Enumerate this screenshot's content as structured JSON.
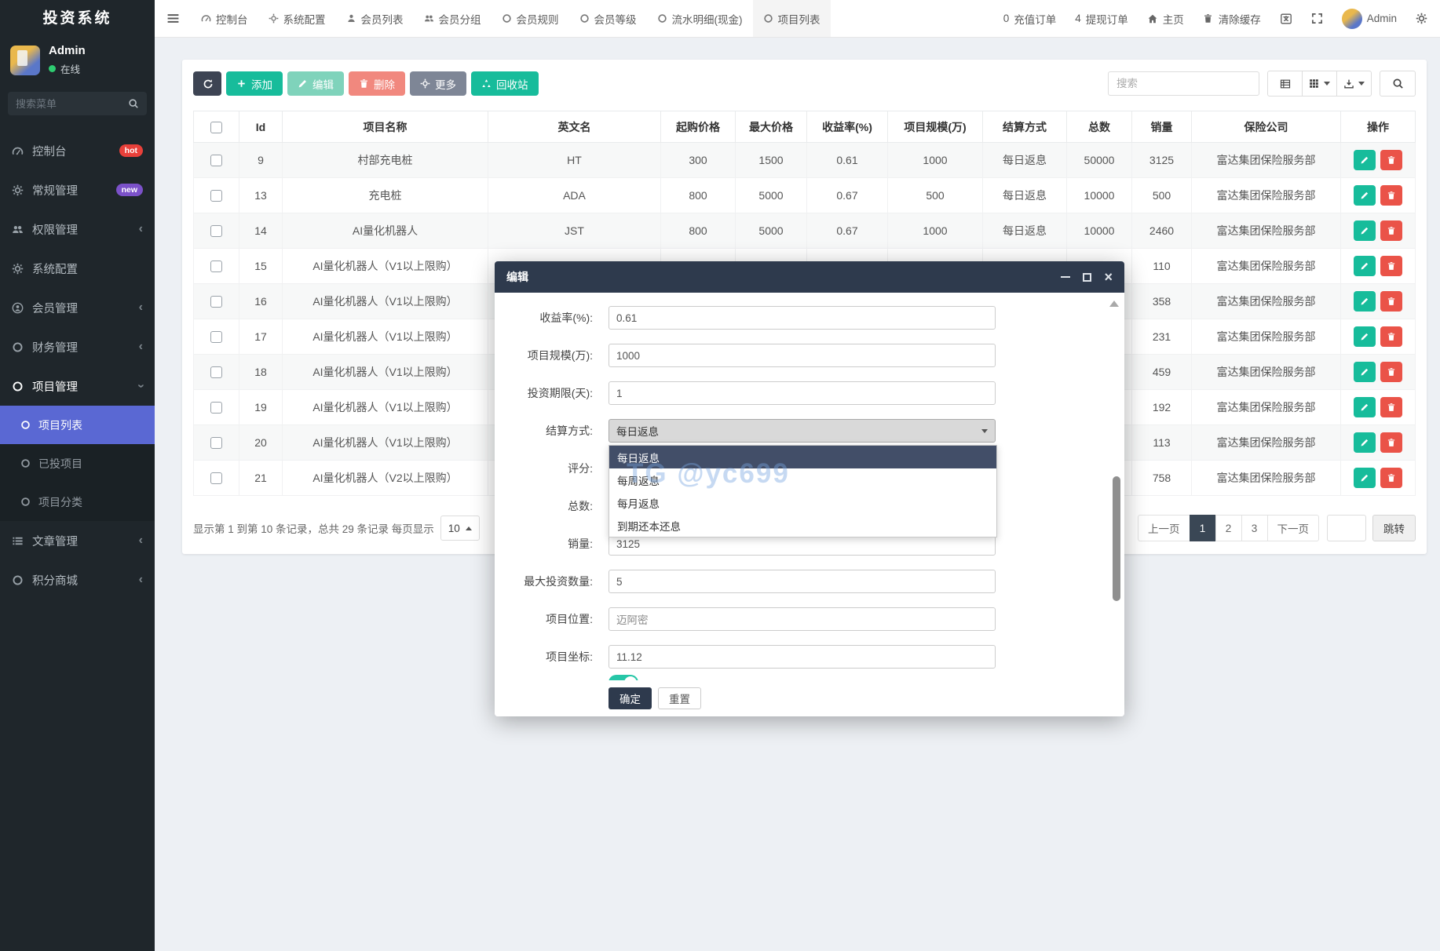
{
  "app": {
    "title": "投资系统"
  },
  "sidebar": {
    "user": {
      "name": "Admin",
      "status": "在线"
    },
    "search_placeholder": "搜索菜单",
    "menu": [
      {
        "label": "控制台",
        "badge": "hot"
      },
      {
        "label": "常规管理",
        "badge": "new"
      },
      {
        "label": "权限管理"
      },
      {
        "label": "系统配置"
      },
      {
        "label": "会员管理"
      },
      {
        "label": "财务管理"
      },
      {
        "label": "项目管理"
      }
    ],
    "submenu": [
      {
        "label": "项目列表"
      },
      {
        "label": "已投项目"
      },
      {
        "label": "项目分类"
      }
    ],
    "menu_bottom": [
      {
        "label": "文章管理"
      },
      {
        "label": "积分商城"
      }
    ]
  },
  "topnav": {
    "tabs": [
      "控制台",
      "系统配置",
      "会员列表",
      "会员分组",
      "会员规则",
      "会员等级",
      "流水明细(现金)",
      "项目列表"
    ],
    "recharge": {
      "count": "0",
      "label": "充值订单"
    },
    "withdraw": {
      "count": "4",
      "label": "提现订单"
    },
    "home_label": "主页",
    "clear_cache_label": "清除缓存",
    "username": "Admin"
  },
  "toolbar": {
    "add_label": "添加",
    "edit_label": "编辑",
    "delete_label": "删除",
    "more_label": "更多",
    "recycle_label": "回收站",
    "search_placeholder": "搜索"
  },
  "table": {
    "columns": [
      "Id",
      "项目名称",
      "英文名",
      "起购价格",
      "最大价格",
      "收益率(%)",
      "项目规模(万)",
      "结算方式",
      "总数",
      "销量",
      "保险公司",
      "操作"
    ],
    "rows": [
      {
        "id": "9",
        "name": "村部充电桩",
        "en": "HT",
        "min_price": "300",
        "max_price": "1500",
        "rate": "0.61",
        "scale": "1000",
        "settle": "每日返息",
        "total": "50000",
        "sales": "3125",
        "insurer": "富达集团保险服务部"
      },
      {
        "id": "13",
        "name": "充电桩",
        "en": "ADA",
        "min_price": "800",
        "max_price": "5000",
        "rate": "0.67",
        "scale": "500",
        "settle": "每日返息",
        "total": "10000",
        "sales": "500",
        "insurer": "富达集团保险服务部"
      },
      {
        "id": "14",
        "name": "AI量化机器人",
        "en": "JST",
        "min_price": "800",
        "max_price": "5000",
        "rate": "0.67",
        "scale": "1000",
        "settle": "每日返息",
        "total": "10000",
        "sales": "2460",
        "insurer": "富达集团保险服务部"
      },
      {
        "id": "15",
        "name": "AI量化机器人（V1以上限购）",
        "en": "",
        "min_price": "",
        "max_price": "",
        "rate": "",
        "scale": "",
        "settle": "",
        "total": "",
        "sales": "110",
        "insurer": "富达集团保险服务部"
      },
      {
        "id": "16",
        "name": "AI量化机器人（V1以上限购）",
        "en": "",
        "min_price": "",
        "max_price": "",
        "rate": "",
        "scale": "",
        "settle": "",
        "total": "",
        "sales": "358",
        "insurer": "富达集团保险服务部"
      },
      {
        "id": "17",
        "name": "AI量化机器人（V1以上限购）",
        "en": "",
        "min_price": "",
        "max_price": "",
        "rate": "",
        "scale": "",
        "settle": "",
        "total": "",
        "sales": "231",
        "insurer": "富达集团保险服务部"
      },
      {
        "id": "18",
        "name": "AI量化机器人（V1以上限购）",
        "en": "",
        "min_price": "",
        "max_price": "",
        "rate": "",
        "scale": "",
        "settle": "",
        "total": "",
        "sales": "459",
        "insurer": "富达集团保险服务部"
      },
      {
        "id": "19",
        "name": "AI量化机器人（V1以上限购）",
        "en": "",
        "min_price": "",
        "max_price": "",
        "rate": "",
        "scale": "",
        "settle": "",
        "total": "",
        "sales": "192",
        "insurer": "富达集团保险服务部"
      },
      {
        "id": "20",
        "name": "AI量化机器人（V1以上限购）",
        "en": "",
        "min_price": "",
        "max_price": "",
        "rate": "",
        "scale": "",
        "settle": "",
        "total": "",
        "sales": "113",
        "insurer": "富达集团保险服务部"
      },
      {
        "id": "21",
        "name": "AI量化机器人（V2以上限购）",
        "en": "",
        "min_price": "",
        "max_price": "",
        "rate": "",
        "scale": "",
        "settle": "",
        "total": "",
        "sales": "758",
        "insurer": "富达集团保险服务部"
      }
    ]
  },
  "table_footer": {
    "info": "显示第 1 到第 10 条记录，总共 29 条记录 每页显示",
    "page_size": "10",
    "prev_label": "上一页",
    "pages": [
      "1",
      "2",
      "3"
    ],
    "active_page": "1",
    "next_label": "下一页",
    "jump_label": "跳转"
  },
  "modal": {
    "title": "编辑",
    "fields": [
      {
        "label": "收益率(%):",
        "value": "0.61"
      },
      {
        "label": "项目规模(万):",
        "value": "1000"
      },
      {
        "label": "投资期限(天):",
        "value": "1"
      },
      {
        "label": "结算方式:",
        "value": "每日返息"
      },
      {
        "label": "评分:",
        "value": ""
      },
      {
        "label": "总数:",
        "value": ""
      },
      {
        "label": "销量:",
        "value": "3125"
      },
      {
        "label": "最大投资数量:",
        "value": "5"
      },
      {
        "label": "项目位置:",
        "value": "迈阿密"
      },
      {
        "label": "项目坐标:",
        "value": "11.12"
      }
    ],
    "dropdown_options": [
      "每日返息",
      "每周返息",
      "每月返息",
      "到期还本还息"
    ],
    "dropdown_selected": "每日返息",
    "ok_label": "确定",
    "reset_label": "重置"
  },
  "watermark": "TG @yc699",
  "colors": {
    "accent_teal": "#17bc9b",
    "danger_red": "#ea5348",
    "navy": "#2e3a4d",
    "active_blue": "#5a68d3"
  }
}
